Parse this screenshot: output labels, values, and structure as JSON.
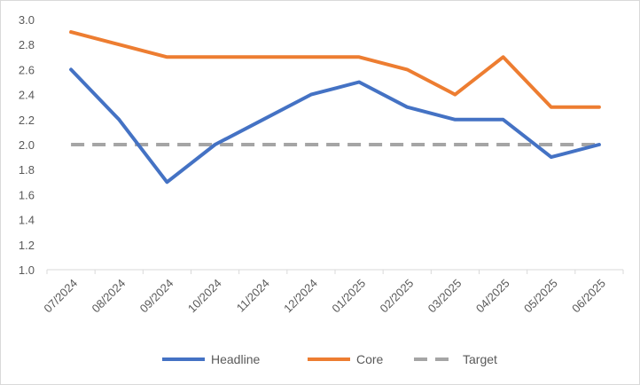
{
  "chart_data": {
    "type": "line",
    "categories": [
      "07/2024",
      "08/2024",
      "09/2024",
      "10/2024",
      "11/2024",
      "12/2024",
      "01/2025",
      "02/2025",
      "03/2025",
      "04/2025",
      "05/2025",
      "06/2025"
    ],
    "series": [
      {
        "name": "Headline",
        "color": "#4472c4",
        "dash": "solid",
        "values": [
          2.6,
          2.2,
          1.7,
          2.0,
          2.2,
          2.4,
          2.5,
          2.3,
          2.2,
          2.2,
          1.9,
          2.0
        ]
      },
      {
        "name": "Core",
        "color": "#ed7d31",
        "dash": "solid",
        "values": [
          2.9,
          2.8,
          2.7,
          2.7,
          2.7,
          2.7,
          2.7,
          2.6,
          2.4,
          2.7,
          2.3,
          2.3
        ]
      },
      {
        "name": "Target",
        "color": "#a5a5a5",
        "dash": "dashed",
        "values": [
          2.0,
          2.0,
          2.0,
          2.0,
          2.0,
          2.0,
          2.0,
          2.0,
          2.0,
          2.0,
          2.0,
          2.0
        ]
      }
    ],
    "ylim": [
      1.0,
      3.0
    ],
    "ytick_step": 0.2,
    "ytick_labels": [
      "1.0",
      "1.2",
      "1.4",
      "1.6",
      "1.8",
      "2.0",
      "2.2",
      "2.4",
      "2.6",
      "2.8",
      "3.0"
    ],
    "grid": false,
    "legend_position": "bottom",
    "title": "",
    "xlabel": "",
    "ylabel": ""
  }
}
